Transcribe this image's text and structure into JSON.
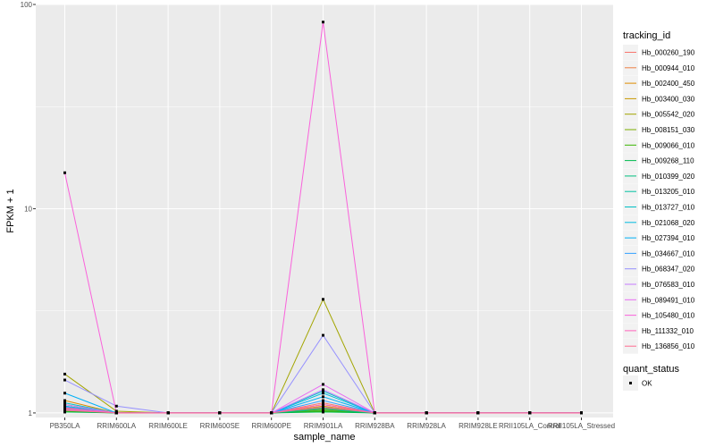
{
  "chart_data": {
    "type": "line",
    "xlabel": "sample_name",
    "ylabel": "FPKM + 1",
    "y_scale": "log10",
    "ylim": [
      0.95,
      100
    ],
    "y_ticks": [
      1,
      10,
      100
    ],
    "y_tick_labels": [
      "1",
      "10",
      "100"
    ],
    "grid": true,
    "legend_position": "right",
    "categories": [
      "PB350LA",
      "RRIM600LA",
      "RRIM600LE",
      "RRIM600SE",
      "RRIM600PE",
      "RRIM901LA",
      "RRIM928BA",
      "RRIM928LA",
      "RRIM928LE",
      "RRII105LA_Control",
      "RRII105LA_Stressed"
    ],
    "series_legend_title": "tracking_id",
    "series": [
      {
        "name": "Hb_000260_190",
        "color": "#F8766D",
        "values": [
          1.08,
          1.0,
          1.0,
          1.0,
          1.0,
          1.12,
          1.0,
          1.0,
          1.0,
          1.0,
          1.0
        ]
      },
      {
        "name": "Hb_000944_010",
        "color": "#EE8043",
        "values": [
          1.05,
          1.0,
          1.0,
          1.0,
          1.0,
          1.1,
          1.0,
          1.0,
          1.0,
          1.0,
          1.0
        ]
      },
      {
        "name": "Hb_002400_450",
        "color": "#DE8C00",
        "values": [
          1.15,
          1.0,
          1.0,
          1.0,
          1.0,
          1.05,
          1.0,
          1.0,
          1.0,
          1.0,
          1.0
        ]
      },
      {
        "name": "Hb_003400_030",
        "color": "#C99800",
        "values": [
          1.1,
          1.0,
          1.0,
          1.0,
          1.0,
          1.08,
          1.0,
          1.0,
          1.0,
          1.0,
          1.0
        ]
      },
      {
        "name": "Hb_005542_020",
        "color": "#A3A500",
        "values": [
          1.55,
          1.02,
          1.0,
          1.0,
          1.0,
          3.6,
          1.0,
          1.0,
          1.0,
          1.0,
          1.0
        ]
      },
      {
        "name": "Hb_008151_030",
        "color": "#7CAE00",
        "values": [
          1.03,
          1.0,
          1.0,
          1.0,
          1.0,
          1.03,
          1.0,
          1.0,
          1.0,
          1.0,
          1.0
        ]
      },
      {
        "name": "Hb_009066_010",
        "color": "#39B600",
        "values": [
          1.02,
          1.0,
          1.0,
          1.0,
          1.0,
          1.02,
          1.0,
          1.0,
          1.0,
          1.0,
          1.0
        ]
      },
      {
        "name": "Hb_009268_110",
        "color": "#00BB4E",
        "values": [
          1.01,
          1.0,
          1.0,
          1.0,
          1.0,
          1.01,
          1.0,
          1.0,
          1.0,
          1.0,
          1.0
        ]
      },
      {
        "name": "Hb_010399_020",
        "color": "#00BF7D",
        "values": [
          1.04,
          1.0,
          1.0,
          1.0,
          1.0,
          1.04,
          1.0,
          1.0,
          1.0,
          1.0,
          1.0
        ]
      },
      {
        "name": "Hb_013205_010",
        "color": "#00C1A3",
        "values": [
          1.06,
          1.0,
          1.0,
          1.0,
          1.0,
          1.06,
          1.0,
          1.0,
          1.0,
          1.0,
          1.0
        ]
      },
      {
        "name": "Hb_013727_010",
        "color": "#00BFC4",
        "values": [
          1.12,
          1.0,
          1.0,
          1.0,
          1.0,
          1.28,
          1.0,
          1.0,
          1.0,
          1.0,
          1.0
        ]
      },
      {
        "name": "Hb_021068_020",
        "color": "#00BAE0",
        "values": [
          1.08,
          1.0,
          1.0,
          1.0,
          1.0,
          1.25,
          1.0,
          1.0,
          1.0,
          1.0,
          1.0
        ]
      },
      {
        "name": "Hb_027394_010",
        "color": "#00B0F6",
        "values": [
          1.25,
          1.0,
          1.0,
          1.0,
          1.0,
          1.2,
          1.0,
          1.0,
          1.0,
          1.0,
          1.0
        ]
      },
      {
        "name": "Hb_034667_010",
        "color": "#35A2FF",
        "values": [
          1.07,
          1.0,
          1.0,
          1.0,
          1.0,
          1.15,
          1.0,
          1.0,
          1.0,
          1.0,
          1.0
        ]
      },
      {
        "name": "Hb_068347_020",
        "color": "#9590FF",
        "values": [
          1.45,
          1.08,
          1.0,
          1.0,
          1.0,
          2.4,
          1.0,
          1.0,
          1.0,
          1.0,
          1.0
        ]
      },
      {
        "name": "Hb_076583_010",
        "color": "#C77CFF",
        "values": [
          1.1,
          1.0,
          1.0,
          1.0,
          1.0,
          1.3,
          1.0,
          1.0,
          1.0,
          1.0,
          1.0
        ]
      },
      {
        "name": "Hb_089491_010",
        "color": "#E76BF3",
        "values": [
          1.04,
          1.0,
          1.0,
          1.0,
          1.0,
          1.38,
          1.0,
          1.0,
          1.0,
          1.0,
          1.0
        ]
      },
      {
        "name": "Hb_105480_010",
        "color": "#FA62DB",
        "values": [
          15.0,
          1.0,
          1.0,
          1.0,
          1.0,
          82.0,
          1.0,
          1.0,
          1.0,
          1.0,
          1.0
        ]
      },
      {
        "name": "Hb_111332_010",
        "color": "#FF62BC",
        "values": [
          1.06,
          1.0,
          1.0,
          1.0,
          1.0,
          1.1,
          1.0,
          1.0,
          1.0,
          1.0,
          1.0
        ]
      },
      {
        "name": "Hb_136856_010",
        "color": "#FF6C91",
        "values": [
          1.03,
          1.0,
          1.0,
          1.0,
          1.0,
          1.07,
          1.0,
          1.0,
          1.0,
          1.0,
          1.0
        ]
      }
    ],
    "shape_legend_title": "quant_status",
    "shape_legend_items": [
      {
        "label": "OK",
        "marker": "square",
        "color": "#000000"
      }
    ],
    "colors": {
      "panel_background": "#EBEBEB",
      "grid_major": "#FFFFFF",
      "points": "#000000"
    }
  }
}
